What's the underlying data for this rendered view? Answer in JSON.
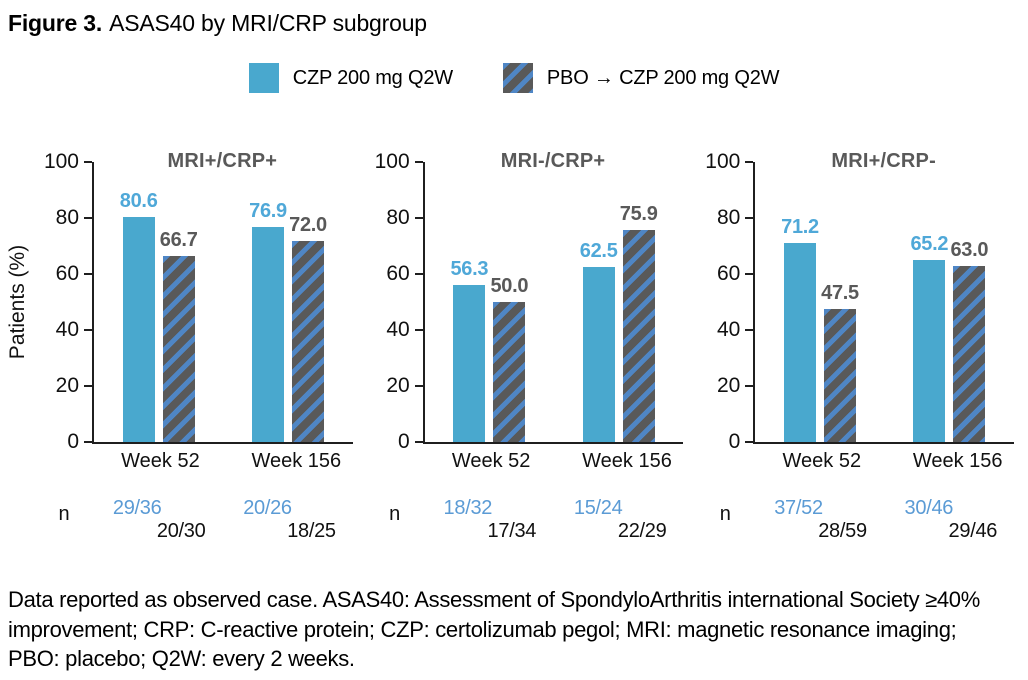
{
  "title": {
    "prefix": "Figure 3.",
    "text": "ASAS40 by MRI/CRP subgroup"
  },
  "legend": {
    "czp_label": "CZP 200 mg Q2W",
    "pbo_label": "PBO → CZP 200 mg Q2W"
  },
  "n_label": "n",
  "footnote": "Data reported as observed case. ASAS40: Assessment of SpondyloArthritis international Society ≥40% improvement; CRP: C-reactive protein; CZP: certolizumab pegol; MRI: magnetic resonance imaging; PBO: placebo; Q2W: every 2 weeks.",
  "colors": {
    "czp": "#49A8CE",
    "czp_value_label": "#4FA8D8",
    "pbo_base": "#595959",
    "pbo_stripe": "#4F86C5",
    "n_czp_blue": "#5B9BD5",
    "panel_title": "#595959",
    "axis": "#1f1f1f"
  },
  "chart_data": {
    "type": "bar",
    "categories": [
      "Week 52",
      "Week 156"
    ],
    "ylabel": "Patients (%)",
    "ylim": [
      0,
      100
    ],
    "yticks": [
      0,
      20,
      40,
      60,
      80,
      100
    ],
    "legend_position": "top-center",
    "grid": false,
    "panels": [
      {
        "title": "MRI+/CRP+",
        "series": [
          {
            "name": "CZP 200 mg Q2W",
            "values": [
              80.6,
              76.9
            ],
            "n": [
              "29/36",
              "20/26"
            ]
          },
          {
            "name": "PBO → CZP 200 mg Q2W",
            "values": [
              66.7,
              72.0
            ],
            "n": [
              "20/30",
              "18/25"
            ]
          }
        ]
      },
      {
        "title": "MRI-/CRP+",
        "series": [
          {
            "name": "CZP 200 mg Q2W",
            "values": [
              56.3,
              62.5
            ],
            "n": [
              "18/32",
              "15/24"
            ]
          },
          {
            "name": "PBO → CZP 200 mg Q2W",
            "values": [
              50.0,
              75.9
            ],
            "n": [
              "17/34",
              "22/29"
            ]
          }
        ]
      },
      {
        "title": "MRI+/CRP-",
        "series": [
          {
            "name": "CZP 200 mg Q2W",
            "values": [
              71.2,
              65.2
            ],
            "n": [
              "37/52",
              "30/46"
            ]
          },
          {
            "name": "PBO → CZP 200 mg Q2W",
            "values": [
              47.5,
              63.0
            ],
            "n": [
              "28/59",
              "29/46"
            ]
          }
        ]
      }
    ]
  }
}
